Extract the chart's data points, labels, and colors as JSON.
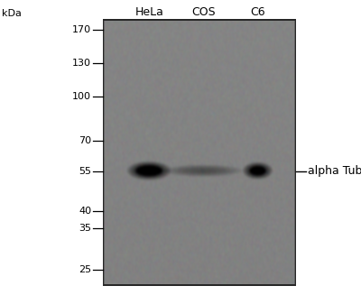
{
  "fig_width": 4.0,
  "fig_height": 3.27,
  "dpi": 100,
  "bg_color": "#ffffff",
  "kda_label": "kDa",
  "mw_marks": [
    170,
    130,
    100,
    70,
    55,
    40,
    35,
    25
  ],
  "lane_labels": [
    "HeLa",
    "COS",
    "C6"
  ],
  "annotation_text": "— alpha Tubulin",
  "band_kda": 55,
  "y_min": 22,
  "y_max": 185,
  "blot_gray": 0.52,
  "blot_noise_std": 0.025,
  "lane_label_fontsize": 9,
  "mw_fontsize": 8,
  "kda_fontsize": 8,
  "annot_fontsize": 9
}
